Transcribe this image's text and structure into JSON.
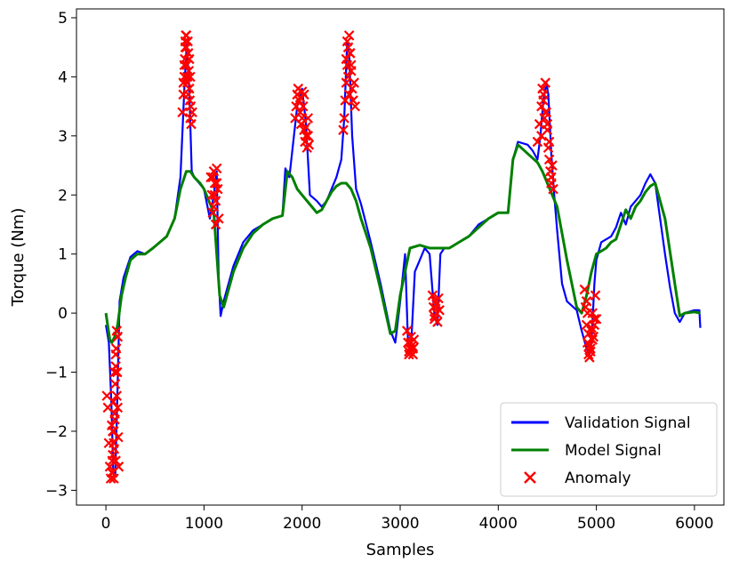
{
  "chart_data": {
    "type": "line",
    "title": "",
    "xlabel": "Samples",
    "ylabel": "Torque (Nm)",
    "xlim": [
      -300,
      6300
    ],
    "ylim": [
      -3.25,
      5.15
    ],
    "x_ticks": [
      0,
      1000,
      2000,
      3000,
      4000,
      5000,
      6000
    ],
    "y_ticks": [
      -3,
      -2,
      -1,
      0,
      1,
      2,
      3,
      4,
      5
    ],
    "x_tick_labels": [
      "0",
      "1000",
      "2000",
      "3000",
      "4000",
      "5000",
      "6000"
    ],
    "y_tick_labels": [
      "−3",
      "−2",
      "−1",
      "0",
      "1",
      "2",
      "3",
      "4",
      "5"
    ],
    "grid": false,
    "legend": {
      "position": "lower-right",
      "entries": [
        "Validation Signal",
        "Model Signal",
        "Anomaly"
      ]
    },
    "colors": {
      "validation": "#0000ff",
      "model": "#008000",
      "anomaly": "#ff0000"
    },
    "series": [
      {
        "name": "Validation Signal",
        "style": "line",
        "x": [
          0,
          30,
          55,
          75,
          95,
          115,
          140,
          180,
          250,
          320,
          400,
          480,
          550,
          620,
          700,
          760,
          800,
          825,
          850,
          875,
          900,
          1000,
          1060,
          1100,
          1130,
          1150,
          1170,
          1200,
          1300,
          1400,
          1500,
          1600,
          1700,
          1800,
          1830,
          1870,
          1950,
          2000,
          2040,
          2080,
          2150,
          2200,
          2250,
          2300,
          2350,
          2400,
          2430,
          2460,
          2480,
          2510,
          2550,
          2600,
          2700,
          2800,
          2900,
          2950,
          3000,
          3050,
          3080,
          3110,
          3150,
          3200,
          3250,
          3300,
          3350,
          3380,
          3410,
          3450,
          3500,
          3600,
          3700,
          3800,
          3900,
          4000,
          4100,
          4150,
          4200,
          4300,
          4350,
          4400,
          4430,
          4460,
          4490,
          4510,
          4540,
          4570,
          4600,
          4650,
          4700,
          4800,
          4850,
          4900,
          4930,
          4950,
          4980,
          5000,
          5050,
          5150,
          5200,
          5250,
          5300,
          5350,
          5400,
          5450,
          5500,
          5550,
          5600,
          5650,
          5700,
          5750,
          5800,
          5850,
          5900,
          6000,
          6050,
          6060
        ],
        "y": [
          -0.2,
          -0.5,
          -1.5,
          -2.7,
          -2.75,
          -1.5,
          0.2,
          0.6,
          0.95,
          1.05,
          1.0,
          1.1,
          1.2,
          1.3,
          1.6,
          2.3,
          3.8,
          4.6,
          3.8,
          2.4,
          2.3,
          2.1,
          1.6,
          2.0,
          2.4,
          0.6,
          -0.05,
          0.2,
          0.8,
          1.2,
          1.4,
          1.5,
          1.6,
          1.65,
          2.45,
          2.3,
          3.5,
          3.8,
          3.2,
          2.0,
          1.9,
          1.8,
          1.9,
          2.1,
          2.3,
          2.6,
          3.3,
          4.6,
          4.4,
          3.0,
          2.1,
          1.85,
          1.2,
          0.5,
          -0.3,
          -0.5,
          0.2,
          1.0,
          -0.5,
          -0.6,
          0.7,
          0.9,
          1.1,
          1.0,
          -0.05,
          -0.2,
          1.0,
          1.1,
          1.1,
          1.2,
          1.3,
          1.5,
          1.6,
          1.7,
          1.7,
          2.6,
          2.9,
          2.85,
          2.75,
          2.6,
          3.0,
          3.6,
          3.9,
          3.7,
          2.7,
          2.0,
          1.4,
          0.5,
          0.2,
          0.05,
          -0.3,
          -0.6,
          -0.7,
          -0.5,
          0.5,
          0.9,
          1.2,
          1.3,
          1.45,
          1.7,
          1.5,
          1.8,
          1.9,
          2.0,
          2.2,
          2.35,
          2.2,
          1.6,
          1.0,
          0.45,
          0.0,
          -0.15,
          0.0,
          0.05,
          0.05,
          -0.25
        ]
      },
      {
        "name": "Model Signal",
        "style": "line",
        "x": [
          0,
          40,
          60,
          90,
          120,
          160,
          200,
          250,
          320,
          400,
          480,
          550,
          620,
          700,
          760,
          820,
          860,
          900,
          960,
          1000,
          1050,
          1100,
          1130,
          1160,
          1200,
          1300,
          1400,
          1500,
          1600,
          1700,
          1800,
          1850,
          1900,
          1950,
          2000,
          2100,
          2150,
          2200,
          2250,
          2300,
          2350,
          2400,
          2450,
          2500,
          2550,
          2600,
          2700,
          2800,
          2900,
          2950,
          3000,
          3100,
          3200,
          3300,
          3400,
          3500,
          3600,
          3700,
          3800,
          3900,
          4000,
          4100,
          4150,
          4200,
          4300,
          4400,
          4450,
          4500,
          4600,
          4700,
          4800,
          4850,
          4900,
          4950,
          5000,
          5050,
          5100,
          5150,
          5200,
          5300,
          5350,
          5400,
          5450,
          5500,
          5550,
          5600,
          5700,
          5800,
          5850,
          5900,
          6000,
          6060
        ],
        "y": [
          0.0,
          -0.45,
          -0.5,
          -0.4,
          -0.2,
          0.3,
          0.6,
          0.9,
          1.0,
          1.0,
          1.1,
          1.2,
          1.3,
          1.6,
          2.1,
          2.4,
          2.4,
          2.3,
          2.2,
          2.1,
          1.9,
          1.7,
          1.0,
          0.3,
          0.1,
          0.7,
          1.1,
          1.35,
          1.5,
          1.6,
          1.65,
          2.4,
          2.3,
          2.1,
          2.0,
          1.8,
          1.7,
          1.75,
          1.9,
          2.05,
          2.15,
          2.2,
          2.2,
          2.1,
          1.9,
          1.6,
          1.1,
          0.4,
          -0.35,
          -0.3,
          0.3,
          1.1,
          1.15,
          1.1,
          1.1,
          1.1,
          1.2,
          1.3,
          1.45,
          1.6,
          1.7,
          1.7,
          2.6,
          2.85,
          2.7,
          2.55,
          2.4,
          2.2,
          1.8,
          0.9,
          0.1,
          0.0,
          0.3,
          0.7,
          1.0,
          1.05,
          1.1,
          1.2,
          1.25,
          1.75,
          1.6,
          1.8,
          1.9,
          2.05,
          2.15,
          2.2,
          1.6,
          0.5,
          -0.05,
          0.0,
          0.02,
          0.0
        ]
      },
      {
        "name": "Anomaly",
        "style": "scatter",
        "x": [
          10,
          20,
          30,
          40,
          50,
          60,
          65,
          70,
          75,
          80,
          85,
          90,
          95,
          100,
          105,
          110,
          115,
          120,
          125,
          130,
          60,
          70,
          80,
          90,
          100,
          110,
          120,
          70,
          80,
          90,
          100,
          780,
          790,
          800,
          805,
          810,
          815,
          820,
          825,
          830,
          835,
          840,
          845,
          850,
          855,
          860,
          865,
          870,
          880,
          790,
          800,
          810,
          820,
          830,
          840,
          850,
          860,
          1070,
          1080,
          1090,
          1100,
          1110,
          1120,
          1130,
          1140,
          1150,
          1090,
          1100,
          1110,
          1120,
          1130,
          1930,
          1940,
          1950,
          1960,
          1970,
          1980,
          1990,
          2000,
          2010,
          2020,
          2030,
          2040,
          2050,
          2060,
          2070,
          1980,
          2000,
          2020,
          2040,
          2060,
          2420,
          2430,
          2440,
          2450,
          2460,
          2470,
          2480,
          2490,
          2500,
          2510,
          2520,
          2530,
          2540,
          2450,
          2460,
          2470,
          2480,
          2490,
          2500,
          3070,
          3080,
          3090,
          3100,
          3110,
          3120,
          3130,
          3140,
          3090,
          3110,
          3130,
          3330,
          3340,
          3350,
          3360,
          3370,
          3380,
          3390,
          3400,
          3350,
          3370,
          4400,
          4420,
          4440,
          4450,
          4460,
          4470,
          4480,
          4490,
          4500,
          4510,
          4520,
          4530,
          4540,
          4550,
          4560,
          4440,
          4460,
          4480,
          4500,
          4520,
          4540,
          4880,
          4890,
          4900,
          4910,
          4920,
          4930,
          4940,
          4950,
          4960,
          4970,
          4980,
          4990,
          5000,
          4900,
          4920,
          4940,
          4960,
          4980,
          4910,
          4930,
          4950
        ],
        "y": [
          -1.4,
          -1.6,
          -2.2,
          -2.6,
          -2.8,
          -2.7,
          -2.5,
          -2.0,
          -1.5,
          -2.8,
          -2.3,
          -1.8,
          -1.2,
          -0.9,
          -0.6,
          -0.3,
          -1.0,
          -1.6,
          -2.1,
          -2.6,
          -1.9,
          -2.4,
          -2.0,
          -1.7,
          -2.5,
          -1.4,
          -0.4,
          -2.7,
          -2.2,
          -1.0,
          -0.7,
          3.4,
          3.7,
          4.0,
          4.3,
          4.6,
          4.7,
          4.5,
          4.2,
          3.9,
          4.6,
          4.4,
          4.1,
          3.8,
          3.6,
          3.3,
          3.5,
          3.2,
          3.4,
          3.9,
          4.2,
          4.5,
          4.7,
          4.0,
          3.7,
          4.3,
          4.0,
          2.3,
          2.0,
          1.7,
          2.4,
          2.2,
          1.9,
          2.45,
          2.1,
          1.6,
          2.3,
          1.8,
          2.0,
          1.5,
          2.2,
          3.3,
          3.5,
          3.7,
          3.8,
          3.6,
          3.4,
          3.2,
          3.75,
          3.5,
          3.1,
          2.9,
          3.0,
          2.8,
          3.3,
          2.85,
          3.65,
          3.3,
          3.7,
          3.15,
          3.0,
          3.1,
          3.3,
          3.6,
          3.9,
          4.2,
          4.5,
          4.7,
          4.4,
          4.1,
          3.8,
          3.6,
          3.9,
          3.5,
          4.3,
          4.6,
          4.0,
          3.7,
          4.4,
          4.2,
          -0.3,
          -0.5,
          -0.7,
          -0.6,
          -0.4,
          -0.55,
          -0.7,
          -0.45,
          -0.65,
          -0.5,
          -0.6,
          0.3,
          0.1,
          -0.1,
          0.2,
          0.0,
          -0.15,
          0.25,
          0.05,
          -0.05,
          0.15,
          2.9,
          3.2,
          3.5,
          3.8,
          3.6,
          3.3,
          3.9,
          3.4,
          3.1,
          2.8,
          2.6,
          2.4,
          2.2,
          2.5,
          2.1,
          3.0,
          3.7,
          3.4,
          3.2,
          2.9,
          2.3,
          0.4,
          0.1,
          -0.2,
          -0.5,
          -0.7,
          -0.75,
          -0.6,
          -0.3,
          0.0,
          -0.4,
          -0.2,
          0.3,
          -0.1,
          0.2,
          -0.35,
          -0.65,
          -0.45,
          -0.1,
          0.0,
          -0.55,
          -0.25
        ]
      }
    ]
  }
}
